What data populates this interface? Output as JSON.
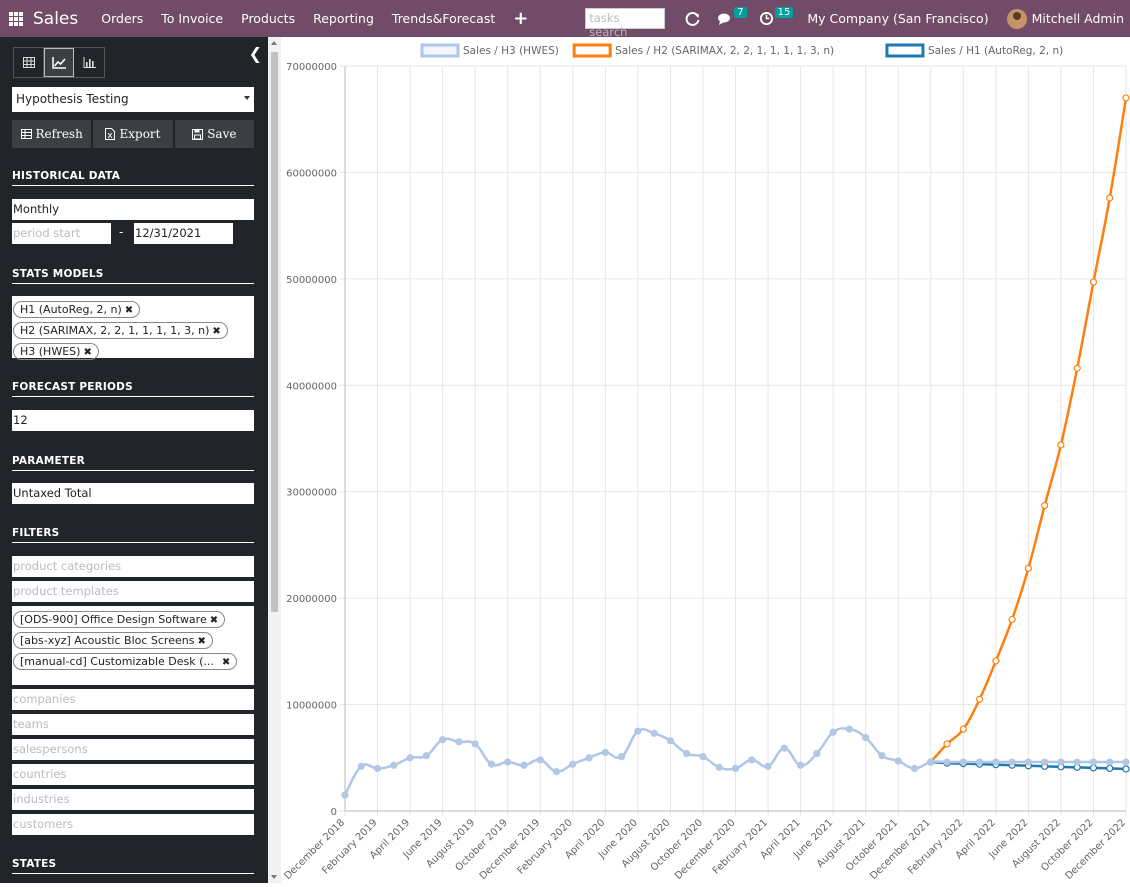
{
  "topbar": {
    "app_title": "Sales",
    "menus": [
      "Orders",
      "To Invoice",
      "Products",
      "Reporting",
      "Trends&Forecast"
    ],
    "search_placeholder": "tasks search",
    "messages_count": "7",
    "activities_count": "15",
    "company": "My Company (San Francisco)",
    "user": "Mitchell Admin"
  },
  "sidebar": {
    "analysis_select": "Hypothesis Testing",
    "buttons": {
      "refresh": "Refresh",
      "export": "Export",
      "save": "Save"
    },
    "historical_data": {
      "title": "HISTORICAL DATA",
      "interval": "Monthly",
      "period_start_placeholder": "period start",
      "separator": "-",
      "period_end": "12/31/2021"
    },
    "stats_models": {
      "title": "STATS MODELS",
      "tags": [
        "H1 (AutoReg, 2, n)",
        "H2 (SARIMAX, 2, 2, 1, 1, 1, 1, 3, n)",
        "H3 (HWES)"
      ]
    },
    "forecast_periods": {
      "title": "FORECAST PERIODS",
      "value": "12"
    },
    "parameter": {
      "title": "PARAMETER",
      "value": "Untaxed Total"
    },
    "filters": {
      "title": "FILTERS",
      "product_categories_placeholder": "product categories",
      "product_templates_placeholder": "product templates",
      "products": [
        "[ODS-900] Office Design Software",
        "[abs-xyz] Acoustic Bloc Screens",
        "[manual-cd] Customizable Desk (..."
      ],
      "companies_placeholder": "companies",
      "teams_placeholder": "teams",
      "salespersons_placeholder": "salespersons",
      "countries_placeholder": "countries",
      "industries_placeholder": "industries",
      "customers_placeholder": "customers"
    },
    "states": {
      "title": "STATES"
    }
  },
  "chart_data": {
    "type": "line",
    "legend": [
      "Sales / H3 (HWES)",
      "Sales / H2 (SARIMAX, 2, 2, 1, 1, 1, 1, 3, n)",
      "Sales / H1 (AutoReg, 2, n)"
    ],
    "legend_position": "top",
    "colors": {
      "h3": "#aec7e8",
      "h2": "#ff7f0e",
      "h1": "#1f77b4"
    },
    "ylim": [
      0,
      70000000
    ],
    "yticks": [
      "0",
      "10000000",
      "20000000",
      "30000000",
      "40000000",
      "50000000",
      "60000000",
      "70000000"
    ],
    "x_categories": [
      "December 2018",
      "January 2019",
      "February 2019",
      "March 2019",
      "April 2019",
      "May 2019",
      "June 2019",
      "July 2019",
      "August 2019",
      "September 2019",
      "October 2019",
      "November 2019",
      "December 2019",
      "January 2020",
      "February 2020",
      "March 2020",
      "April 2020",
      "May 2020",
      "June 2020",
      "July 2020",
      "August 2020",
      "September 2020",
      "October 2020",
      "November 2020",
      "December 2020",
      "January 2021",
      "February 2021",
      "March 2021",
      "April 2021",
      "May 2021",
      "June 2021",
      "July 2021",
      "August 2021",
      "September 2021",
      "October 2021",
      "November 2021",
      "December 2021",
      "January 2022",
      "February 2022",
      "March 2022",
      "April 2022",
      "May 2022",
      "June 2022",
      "July 2022",
      "August 2022",
      "September 2022",
      "October 2022",
      "November 2022",
      "December 2022"
    ],
    "x_tick_labels": [
      "December 2018",
      "February 2019",
      "April 2019",
      "June 2019",
      "August 2019",
      "October 2019",
      "December 2019",
      "February 2020",
      "April 2020",
      "June 2020",
      "August 2020",
      "October 2020",
      "December 2020",
      "February 2021",
      "April 2021",
      "June 2021",
      "August 2021",
      "October 2021",
      "December 2021",
      "February 2022",
      "April 2022",
      "June 2022",
      "August 2022",
      "October 2022",
      "December 2022"
    ],
    "grid": true,
    "series": [
      {
        "name": "Sales / H3 (HWES)",
        "key": "h3",
        "values": [
          1500000,
          4200000,
          4000000,
          4300000,
          5000000,
          5200000,
          6700000,
          6500000,
          6300000,
          4400000,
          4600000,
          4300000,
          4800000,
          3700000,
          4400000,
          5000000,
          5500000,
          5100000,
          7500000,
          7300000,
          6600000,
          5400000,
          5100000,
          4100000,
          4000000,
          4800000,
          4200000,
          5900000,
          4300000,
          5400000,
          7400000,
          7700000,
          6900000,
          5200000,
          4700000,
          4000000,
          4600000,
          4600000,
          4600000,
          4600000,
          4600000,
          4600000,
          4600000,
          4600000,
          4600000,
          4600000,
          4600000,
          4600000,
          4600000
        ]
      },
      {
        "name": "Sales / H2 (SARIMAX, 2, 2, 1, 1, 1, 1, 3, n)",
        "key": "h2",
        "values": [
          null,
          null,
          null,
          null,
          null,
          null,
          null,
          null,
          null,
          null,
          null,
          null,
          null,
          null,
          null,
          null,
          null,
          null,
          null,
          null,
          null,
          null,
          null,
          null,
          null,
          null,
          null,
          null,
          null,
          null,
          null,
          null,
          null,
          null,
          null,
          null,
          4600000,
          6300000,
          7700000,
          10500000,
          14100000,
          18000000,
          22800000,
          28700000,
          34400000,
          41600000,
          49700000,
          57600000,
          67000000
        ]
      },
      {
        "name": "Sales / H1 (AutoReg, 2, n)",
        "key": "h1",
        "values": [
          null,
          null,
          null,
          null,
          null,
          null,
          null,
          null,
          null,
          null,
          null,
          null,
          null,
          null,
          null,
          null,
          null,
          null,
          null,
          null,
          null,
          null,
          null,
          null,
          null,
          null,
          null,
          null,
          null,
          null,
          null,
          null,
          null,
          null,
          null,
          null,
          4600000,
          4500000,
          4450000,
          4400000,
          4350000,
          4300000,
          4250000,
          4200000,
          4150000,
          4100000,
          4050000,
          4000000,
          3950000
        ]
      }
    ]
  }
}
